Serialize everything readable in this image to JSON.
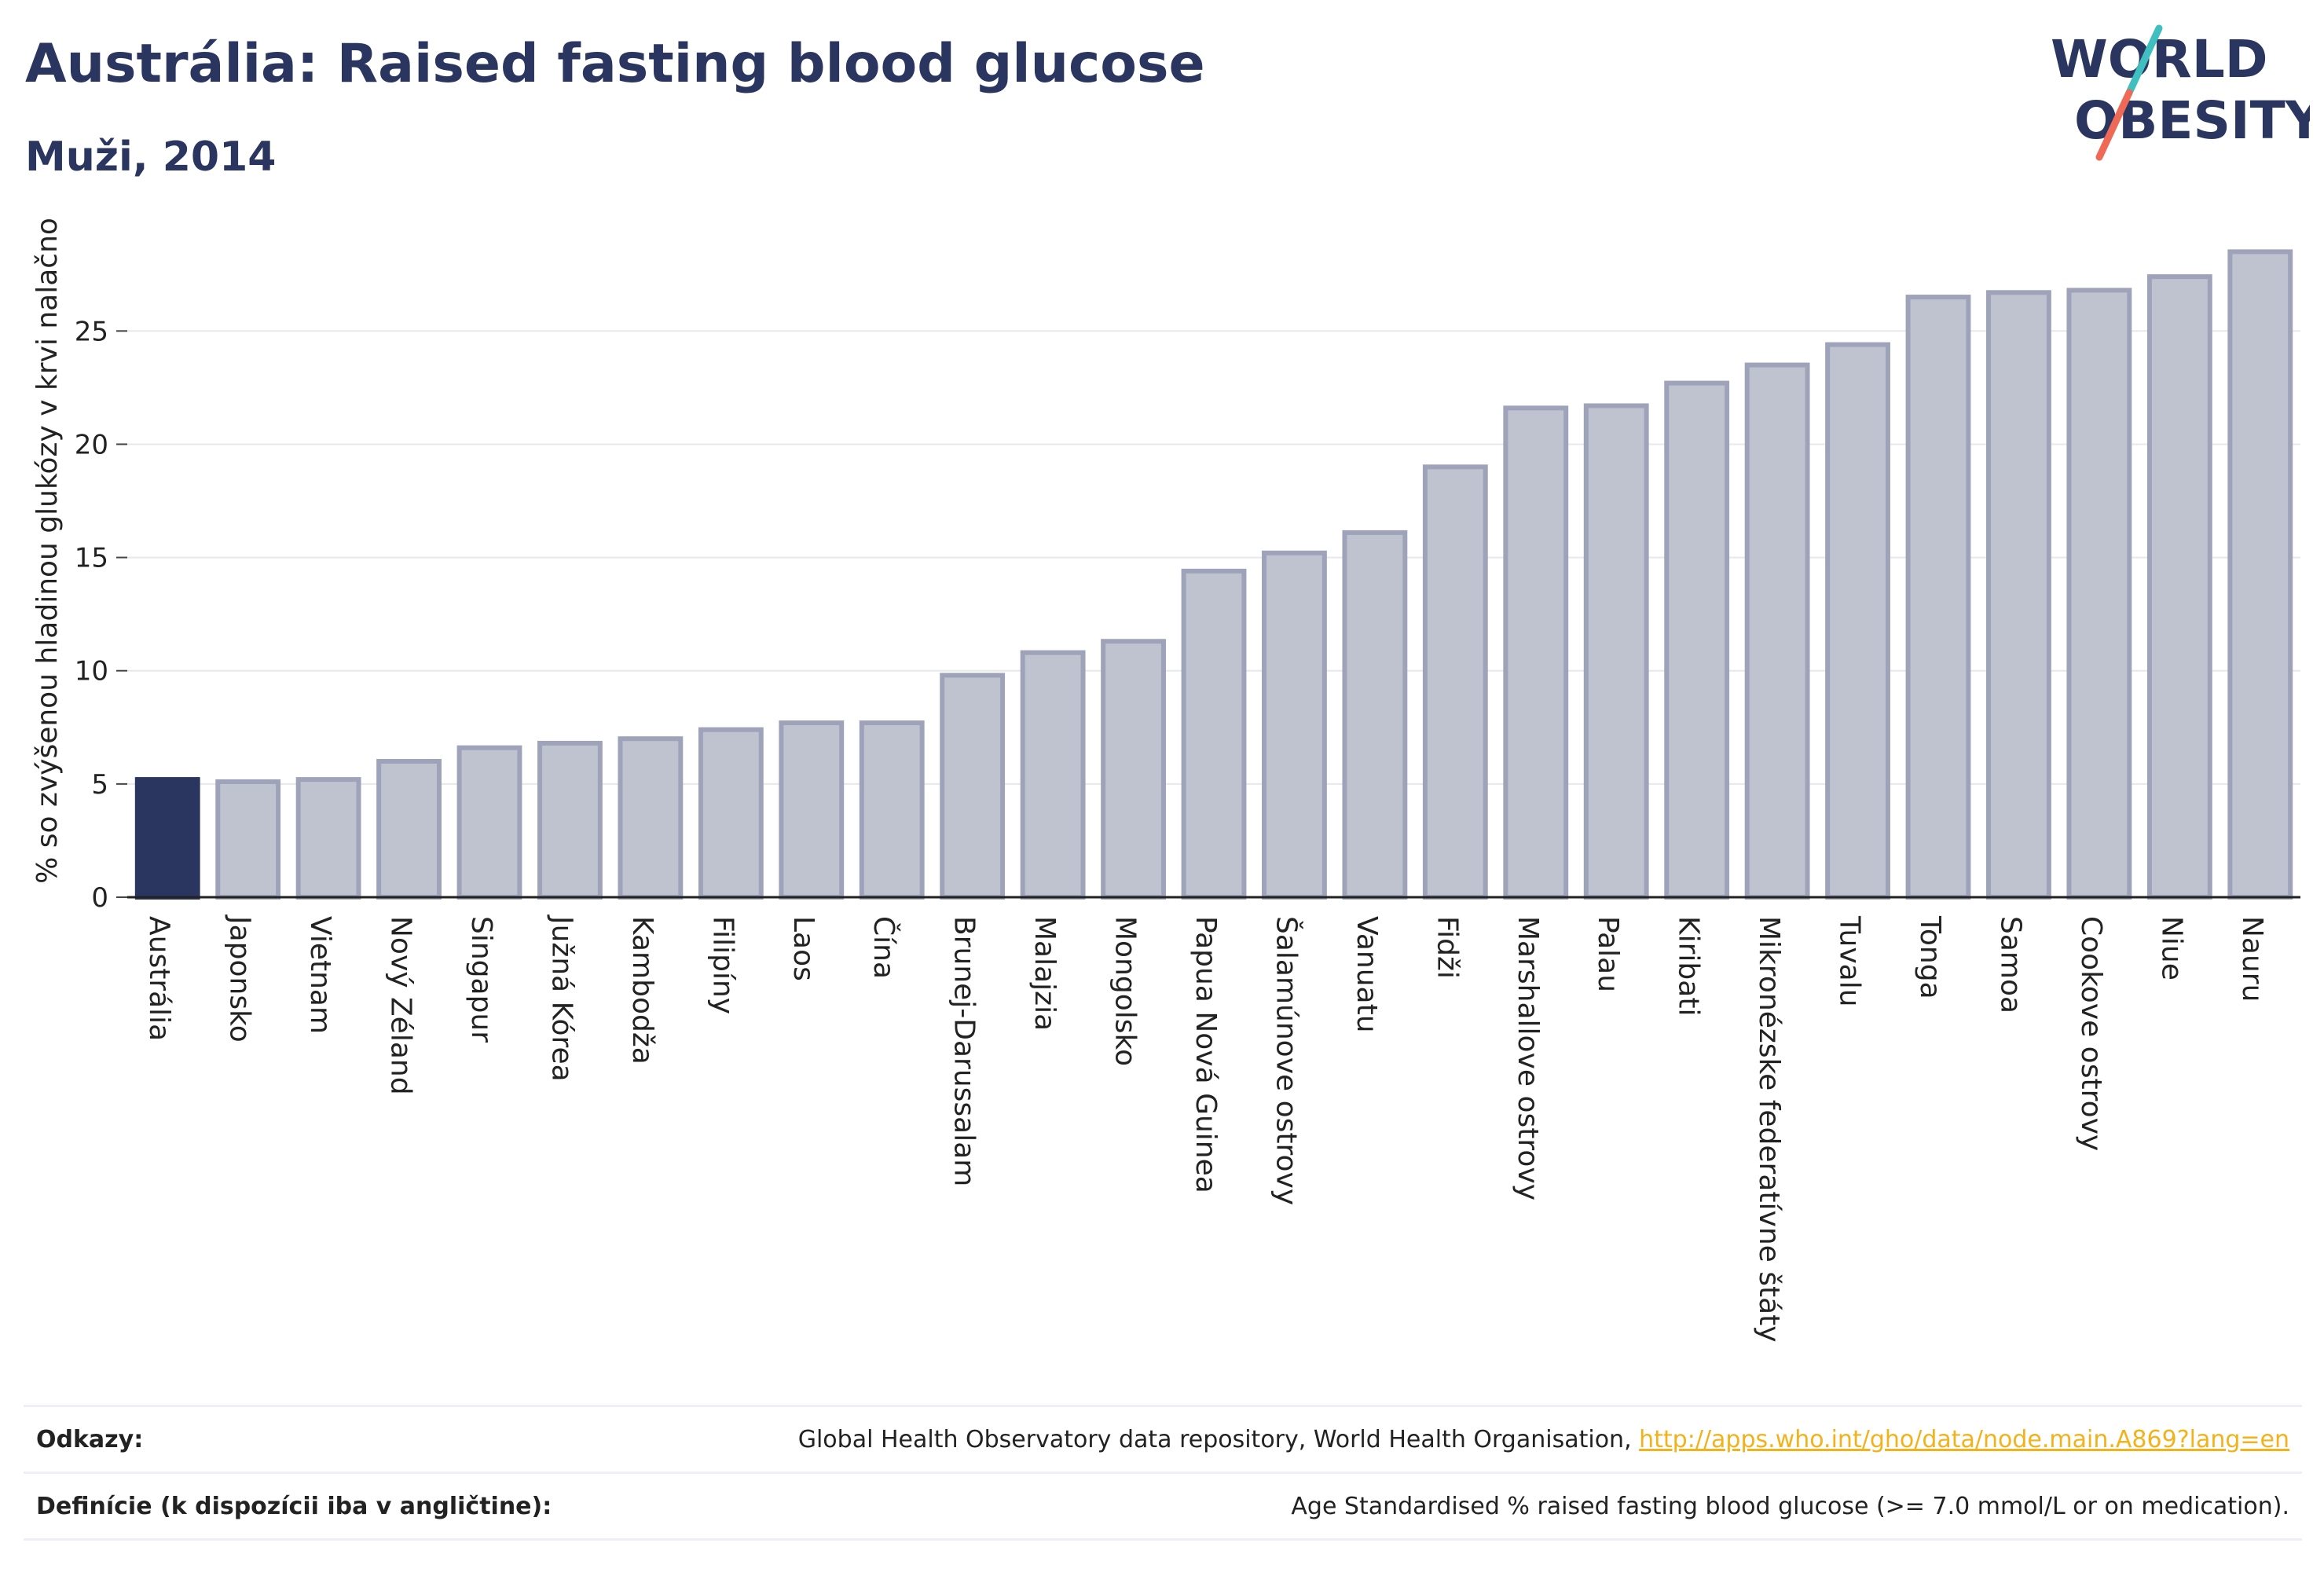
{
  "header": {
    "title": "Austrália: Raised fasting blood glucose",
    "subtitle": "Muži, 2014"
  },
  "logo": {
    "line1": "WORLD",
    "line2": "OBESITY"
  },
  "colors": {
    "highlight_bar": "#2b3660",
    "bar_fill": "#bfc2cf",
    "bar_stroke": "#9ea3b9",
    "grid": "#e6e8ee",
    "text": "#222222",
    "link": "#f2b21b",
    "logo_teal": "#3fbfbf",
    "logo_coral": "#ee6a56"
  },
  "chart_data": {
    "type": "bar",
    "title": "Austrália: Raised fasting blood glucose",
    "subtitle": "Muži, 2014",
    "ylabel": "% so zvýšenou hladinou glukózy v krvi nalačno",
    "xlabel": "",
    "ylim": [
      0,
      29
    ],
    "yticks": [
      0,
      5,
      10,
      15,
      20,
      25
    ],
    "grid": true,
    "highlight": "Austrália",
    "categories": [
      "Austrália",
      "Japonsko",
      "Vietnam",
      "Nový Zéland",
      "Singapur",
      "Južná Kórea",
      "Kambodža",
      "Filipíny",
      "Laos",
      "Čína",
      "Brunej-Darussalam",
      "Malajzia",
      "Mongolsko",
      "Papua Nová Guinea",
      "Šalamúnove ostrovy",
      "Vanuatu",
      "Fidži",
      "Marshallove ostrovy",
      "Palau",
      "Kiribati",
      "Mikronézske federatívne štáty",
      "Tuvalu",
      "Tonga",
      "Samoa",
      "Cookove ostrovy",
      "Niue",
      "Nauru"
    ],
    "values": [
      5.2,
      5.1,
      5.2,
      6.0,
      6.6,
      6.8,
      7.0,
      7.4,
      7.7,
      7.7,
      9.8,
      10.8,
      11.3,
      14.4,
      15.2,
      16.1,
      19.0,
      21.6,
      21.7,
      22.7,
      23.5,
      24.4,
      26.5,
      26.7,
      26.8,
      27.4,
      28.5
    ]
  },
  "footer": {
    "references_label": "Odkazy:",
    "references_text": "Global Health Observatory data repository, World Health Organisation, ",
    "references_link": "http://apps.who.int/gho/data/node.main.A869?lang=en",
    "definitions_label": "Definície (k dispozícii iba v angličtine):",
    "definitions_text": "Age Standardised % raised fasting blood glucose (>= 7.0 mmol/L or on medication)."
  }
}
